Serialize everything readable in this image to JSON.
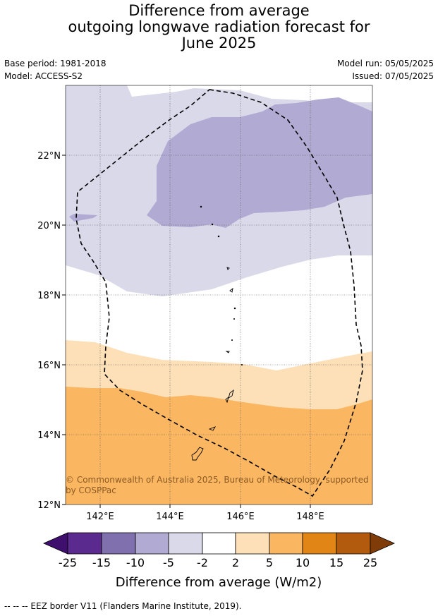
{
  "title": {
    "line1": "Difference from average",
    "line2": "outgoing longwave radiation forecast for",
    "line3": "June 2025"
  },
  "meta": {
    "base_period": "Base period: 1981-2018",
    "model": "Model: ACCESS-S2",
    "model_run": "Model run: 05/05/2025",
    "issued": "Issued: 07/05/2025"
  },
  "map": {
    "lat_ticks": [
      "22°N",
      "20°N",
      "18°N",
      "16°N",
      "14°N",
      "12°N"
    ],
    "lon_ticks": [
      "142°E",
      "144°E",
      "146°E",
      "148°E"
    ],
    "copyright": "© Commonwealth of Australia 2025, Bureau of Meteorology, supported",
    "copyright2": "by COSPPac"
  },
  "colorbar": {
    "label": "Difference from average (W/m2)",
    "ticks": [
      "-25",
      "-15",
      "-10",
      "-5",
      "-2",
      "2",
      "5",
      "10",
      "15",
      "25"
    ],
    "colors": [
      "#3f0f6e",
      "#5b2a8e",
      "#8070ad",
      "#b1abd3",
      "#d9d9ea",
      "#ffffff",
      "#fde0b8",
      "#fbb662",
      "#e18516",
      "#b25a0d",
      "#7f3b08"
    ]
  },
  "footer": {
    "legend": "--  --  -- EEZ border V11 (Flanders Marine Institute, 2019)."
  }
}
